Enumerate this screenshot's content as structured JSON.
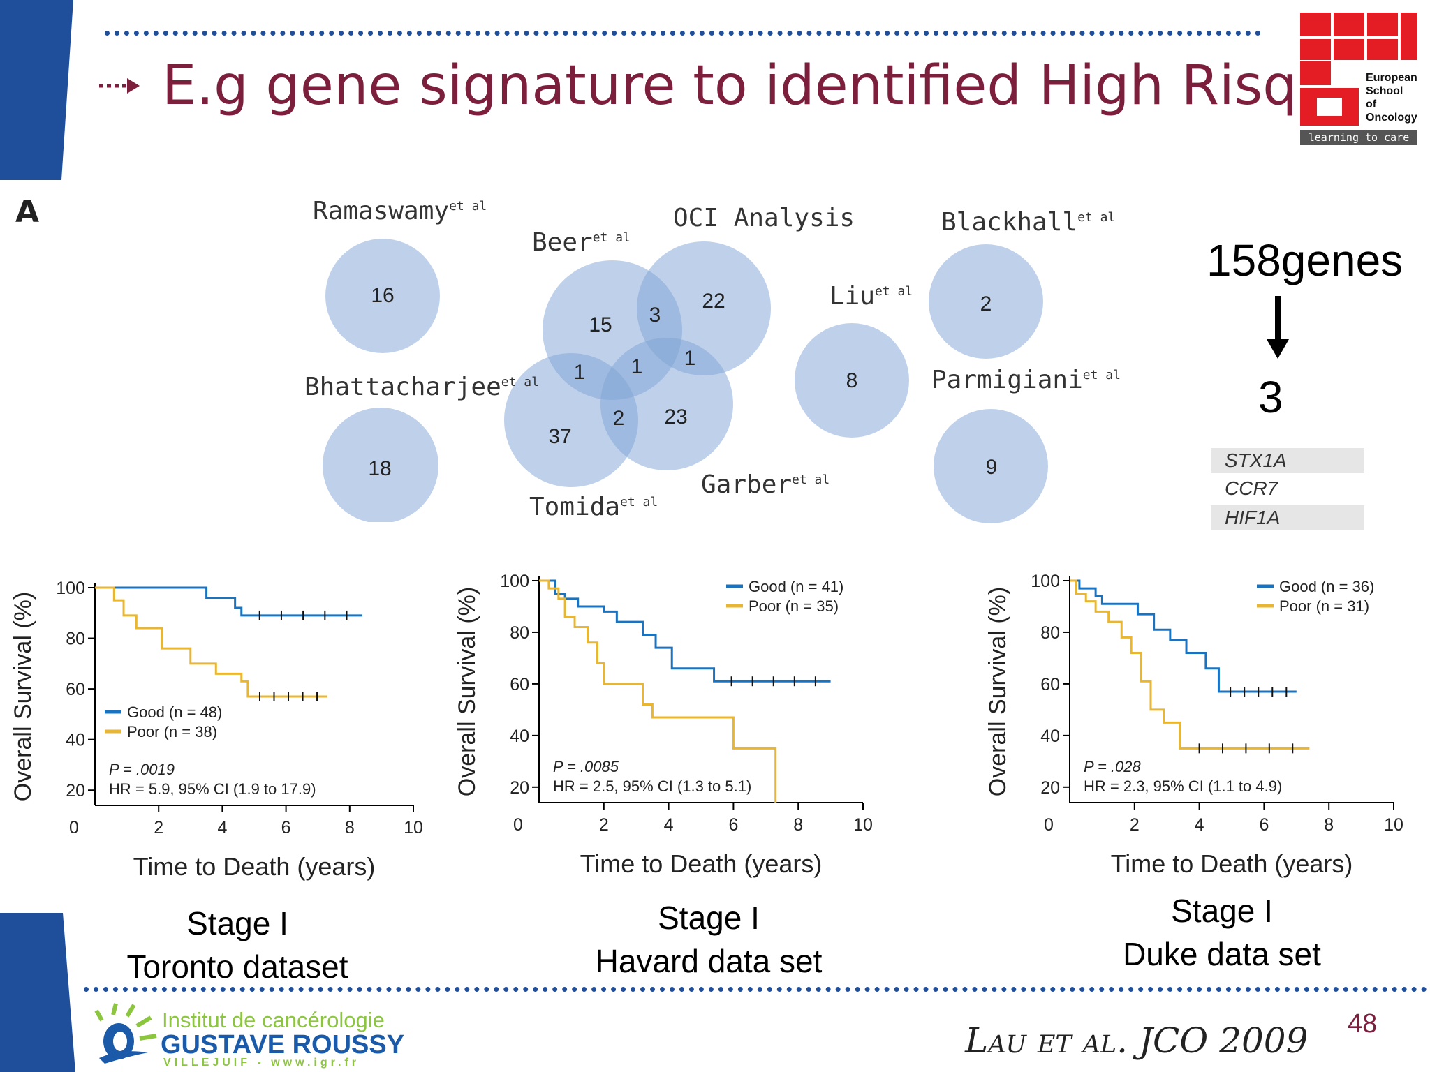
{
  "slide": {
    "title": "E.g gene signature to identified High Risq",
    "bullet_icon": "dashed-arrow-icon",
    "page_number": "48",
    "citation": "Lau et al. JCO 2009",
    "accent_color": "#7b1f3c",
    "brand_blue": "#1f4e9b"
  },
  "esso_logo": {
    "line1": "European",
    "line2": "School",
    "line3": "of",
    "line4": "Oncology",
    "tagline": "learning to care"
  },
  "igr_logo": {
    "line1": "Institut de cancérologie",
    "line2": "GUSTAVE ROUSSY",
    "line3": "VILLEJUIF - www.igr.fr"
  },
  "venn": {
    "panel_letter": "A",
    "labels": {
      "ramaswamy": "Ramaswamy",
      "beer": "Beer",
      "oci": "OCI Analysis",
      "blackhall": "Blackhall",
      "liu": "Liu",
      "bhattacharjee": "Bhattacharjee",
      "parmigiani": "Parmigiani",
      "tomida": "Tomida",
      "garber": "Garber"
    },
    "et_al": "et al",
    "counts": {
      "ramaswamy": "16",
      "bhattacharjee": "18",
      "beer_only": "15",
      "beer_oci": "3",
      "oci_only": "22",
      "beer_tomida": "1",
      "beer_garber": "1",
      "oci_garber": "1",
      "center": "2",
      "tomida_only": "37",
      "garber_only": "23",
      "liu": "8",
      "blackhall": "2",
      "parmigiani": "9"
    }
  },
  "genes": {
    "from": "158genes",
    "to": "3",
    "arrow_icon": "down-arrow-icon",
    "list": [
      "STX1A",
      "CCR7",
      "HIF1A"
    ]
  },
  "stages": [
    {
      "line1": "Stage I",
      "line2": "Toronto dataset"
    },
    {
      "line1": "Stage I",
      "line2": "Havard data set"
    },
    {
      "line1": "Stage I",
      "line2": "Duke data set"
    }
  ],
  "chart_data": [
    {
      "type": "line",
      "xlabel": "Time to Death (years)",
      "ylabel": "Overall Survival (%)",
      "xlim": [
        0,
        10
      ],
      "ylim": [
        0,
        100
      ],
      "xticks": [
        "0",
        "2",
        "4",
        "6",
        "8",
        "10"
      ],
      "yticks": [
        "20",
        "40",
        "60",
        "80",
        "100"
      ],
      "legend_placement": "bottom-left",
      "stat_p": "P = .0019",
      "stat_hr": "HR = 5.9, 95% CI (1.9 to 17.9)",
      "series": [
        {
          "name": "Good (n = 48)",
          "color": "#1a73c0",
          "points": [
            [
              0,
              100
            ],
            [
              3.5,
              100
            ],
            [
              3.5,
              96
            ],
            [
              4.4,
              96
            ],
            [
              4.4,
              92
            ],
            [
              4.6,
              92
            ],
            [
              4.6,
              89
            ],
            [
              8.4,
              89
            ]
          ]
        },
        {
          "name": "Poor (n = 38)",
          "color": "#e8b630",
          "points": [
            [
              0,
              100
            ],
            [
              0.6,
              100
            ],
            [
              0.6,
              95
            ],
            [
              0.9,
              95
            ],
            [
              0.9,
              89
            ],
            [
              1.3,
              89
            ],
            [
              1.3,
              84
            ],
            [
              2.1,
              84
            ],
            [
              2.1,
              76
            ],
            [
              3.0,
              76
            ],
            [
              3.0,
              70
            ],
            [
              3.8,
              70
            ],
            [
              3.8,
              66
            ],
            [
              4.6,
              66
            ],
            [
              4.6,
              63
            ],
            [
              4.8,
              63
            ],
            [
              4.8,
              57
            ],
            [
              7.3,
              57
            ]
          ]
        }
      ]
    },
    {
      "type": "line",
      "xlabel": "Time to Death (years)",
      "ylabel": "Overall Survival (%)",
      "xlim": [
        0,
        10
      ],
      "ylim": [
        0,
        100
      ],
      "xticks": [
        "0",
        "2",
        "4",
        "6",
        "8",
        "10"
      ],
      "yticks": [
        "20",
        "40",
        "60",
        "80",
        "100"
      ],
      "legend_placement": "top-right",
      "stat_p": "P = .0085",
      "stat_hr": "HR = 2.5, 95% CI (1.3 to 5.1)",
      "series": [
        {
          "name": "Good (n = 41)",
          "color": "#1a73c0",
          "points": [
            [
              0,
              100
            ],
            [
              0.5,
              100
            ],
            [
              0.5,
              95
            ],
            [
              0.8,
              95
            ],
            [
              0.8,
              93
            ],
            [
              1.2,
              93
            ],
            [
              1.2,
              90
            ],
            [
              2.0,
              90
            ],
            [
              2.0,
              88
            ],
            [
              2.4,
              88
            ],
            [
              2.4,
              84
            ],
            [
              3.2,
              84
            ],
            [
              3.2,
              79
            ],
            [
              3.6,
              79
            ],
            [
              3.6,
              74
            ],
            [
              4.1,
              74
            ],
            [
              4.1,
              66
            ],
            [
              5.4,
              66
            ],
            [
              5.4,
              61
            ],
            [
              9.0,
              61
            ]
          ]
        },
        {
          "name": "Poor (n = 35)",
          "color": "#e8b630",
          "points": [
            [
              0,
              100
            ],
            [
              0.3,
              100
            ],
            [
              0.3,
              97
            ],
            [
              0.6,
              97
            ],
            [
              0.6,
              93
            ],
            [
              0.8,
              93
            ],
            [
              0.8,
              86
            ],
            [
              1.1,
              86
            ],
            [
              1.1,
              82
            ],
            [
              1.5,
              82
            ],
            [
              1.5,
              76
            ],
            [
              1.8,
              76
            ],
            [
              1.8,
              68
            ],
            [
              2.0,
              68
            ],
            [
              2.0,
              60
            ],
            [
              3.2,
              60
            ],
            [
              3.2,
              52
            ],
            [
              3.5,
              52
            ],
            [
              3.5,
              47
            ],
            [
              6.0,
              47
            ],
            [
              6.0,
              35
            ],
            [
              7.3,
              35
            ],
            [
              7.3,
              0
            ]
          ]
        }
      ]
    },
    {
      "type": "line",
      "xlabel": "Time to Death (years)",
      "ylabel": "Overall Survival (%)",
      "xlim": [
        0,
        10
      ],
      "ylim": [
        0,
        100
      ],
      "xticks": [
        "0",
        "2",
        "4",
        "6",
        "8",
        "10"
      ],
      "yticks": [
        "20",
        "40",
        "60",
        "80",
        "100"
      ],
      "legend_placement": "top-right",
      "stat_p": "P = .028",
      "stat_hr": "HR = 2.3, 95% CI (1.1 to 4.9)",
      "series": [
        {
          "name": "Good (n = 36)",
          "color": "#1a73c0",
          "points": [
            [
              0,
              100
            ],
            [
              0.3,
              100
            ],
            [
              0.3,
              97
            ],
            [
              0.8,
              97
            ],
            [
              0.8,
              94
            ],
            [
              1.0,
              94
            ],
            [
              1.0,
              91
            ],
            [
              2.1,
              91
            ],
            [
              2.1,
              87
            ],
            [
              2.6,
              87
            ],
            [
              2.6,
              81
            ],
            [
              3.1,
              81
            ],
            [
              3.1,
              77
            ],
            [
              3.6,
              77
            ],
            [
              3.6,
              72
            ],
            [
              4.2,
              72
            ],
            [
              4.2,
              66
            ],
            [
              4.6,
              66
            ],
            [
              4.6,
              57
            ],
            [
              7.0,
              57
            ]
          ]
        },
        {
          "name": "Poor (n = 31)",
          "color": "#e8b630",
          "points": [
            [
              0,
              100
            ],
            [
              0.2,
              100
            ],
            [
              0.2,
              95
            ],
            [
              0.5,
              95
            ],
            [
              0.5,
              92
            ],
            [
              0.8,
              92
            ],
            [
              0.8,
              88
            ],
            [
              1.2,
              88
            ],
            [
              1.2,
              84
            ],
            [
              1.6,
              84
            ],
            [
              1.6,
              78
            ],
            [
              1.9,
              78
            ],
            [
              1.9,
              72
            ],
            [
              2.2,
              72
            ],
            [
              2.2,
              61
            ],
            [
              2.5,
              61
            ],
            [
              2.5,
              50
            ],
            [
              2.9,
              50
            ],
            [
              2.9,
              45
            ],
            [
              3.4,
              45
            ],
            [
              3.4,
              35
            ],
            [
              7.4,
              35
            ]
          ]
        }
      ]
    }
  ]
}
